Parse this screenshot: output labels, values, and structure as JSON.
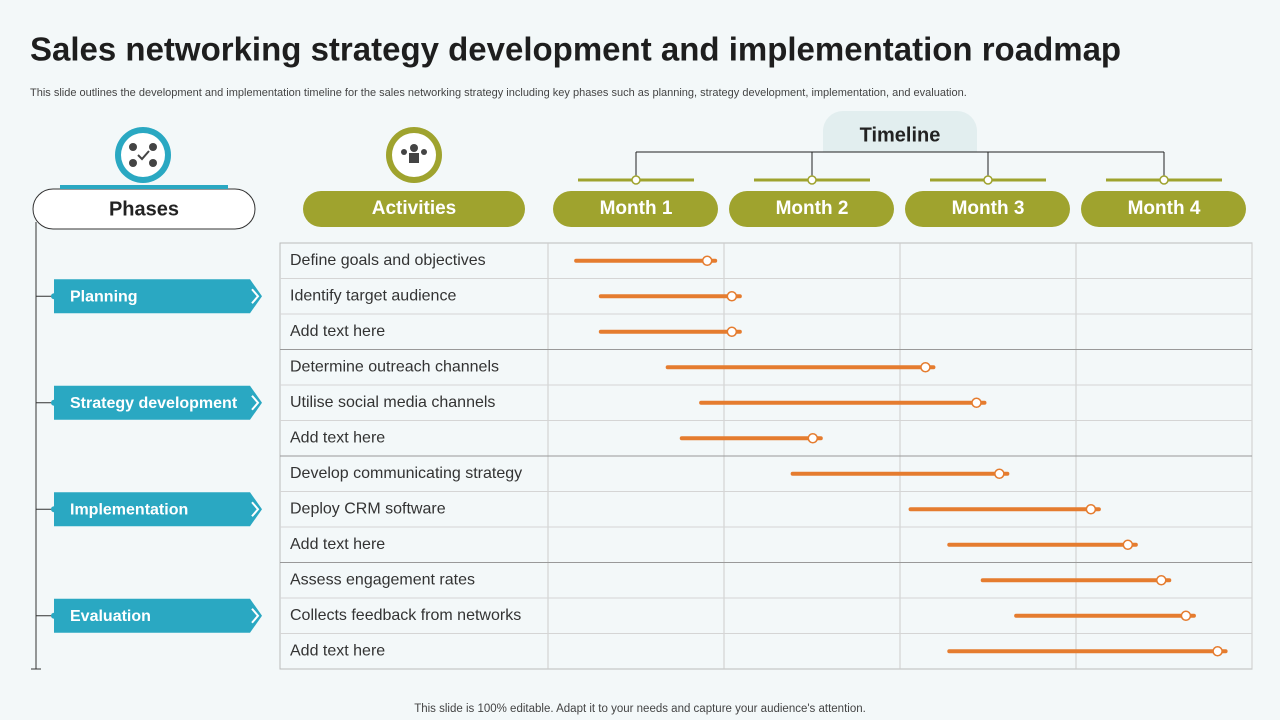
{
  "title": "Sales networking strategy development and implementation roadmap",
  "subtitle": "This slide outlines the development and implementation timeline for the sales networking strategy including key phases such as planning, strategy development, implementation, and evaluation.",
  "footer": "This slide is 100% editable. Adapt it to your needs and capture your audience's attention.",
  "timeline_label": "Timeline",
  "phases_header": "Phases",
  "activities_header": "Activities",
  "months": [
    "Month 1",
    "Month 2",
    "Month 3",
    "Month 4"
  ],
  "phases": [
    {
      "name": "Planning",
      "tasks": [
        {
          "label": "Define goals and objectives",
          "start": 0.16,
          "end": 0.95
        },
        {
          "label": "Identify  target audience",
          "start": 0.3,
          "end": 1.09
        },
        {
          "label": "Add text here",
          "start": 0.3,
          "end": 1.09
        }
      ]
    },
    {
      "name": "Strategy development",
      "tasks": [
        {
          "label": "Determine outreach channels",
          "start": 0.68,
          "end": 2.19
        },
        {
          "label": "Utilise social media channels",
          "start": 0.87,
          "end": 2.48
        },
        {
          "label": "Add text here",
          "start": 0.76,
          "end": 1.55
        }
      ]
    },
    {
      "name": "Implementation",
      "tasks": [
        {
          "label": "Develop communicating strategy",
          "start": 1.39,
          "end": 2.61
        },
        {
          "label": "Deploy CRM software",
          "start": 2.06,
          "end": 3.13
        },
        {
          "label": "Add text here",
          "start": 2.28,
          "end": 3.34
        }
      ]
    },
    {
      "name": "Evaluation",
      "tasks": [
        {
          "label": "Assess engagement rates",
          "start": 2.47,
          "end": 3.53
        },
        {
          "label": "Collects feedback from networks",
          "start": 2.66,
          "end": 3.67
        },
        {
          "label": "Add text here",
          "start": 2.28,
          "end": 3.85
        }
      ]
    }
  ]
}
